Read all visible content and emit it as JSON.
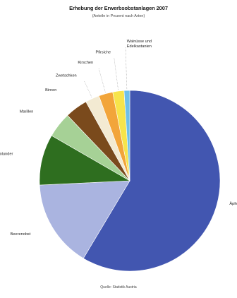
{
  "chart_data": {
    "type": "pie",
    "title": "Erhebung der Erwerbsobstanlagen 2007",
    "subtitle": "(Anteile in Prozent nach Arten)",
    "source": "Quelle: Statistik Austria",
    "categories": [
      "Äpfel",
      "Beerenobst",
      "Holunder",
      "Marillen",
      "Birnen",
      "Zwetschken",
      "Kirschen",
      "Pfirsiche",
      "Walnüsse und Edelkastanien"
    ],
    "values": [
      58.0,
      15.5,
      9.0,
      4.5,
      4.0,
      2.5,
      2.5,
      2.0,
      1.0
    ],
    "colors": [
      "#4256b0",
      "#aab4e0",
      "#2e6e1f",
      "#a6d196",
      "#7a4a1c",
      "#f3ead2",
      "#f2a53a",
      "#f7e44a",
      "#6ec0e8"
    ],
    "label_lines": [
      [
        "Äpfel"
      ],
      [
        "Beerenobst"
      ],
      [
        "Holunder"
      ],
      [
        "Marillen"
      ],
      [
        "Birnen"
      ],
      [
        "Zwetschken"
      ],
      [
        "Kirschen"
      ],
      [
        "Pfirsiche"
      ],
      [
        "Walnüsse und",
        "Edelkastanien"
      ]
    ],
    "start_angle_deg": 0,
    "direction": "clockwise"
  }
}
